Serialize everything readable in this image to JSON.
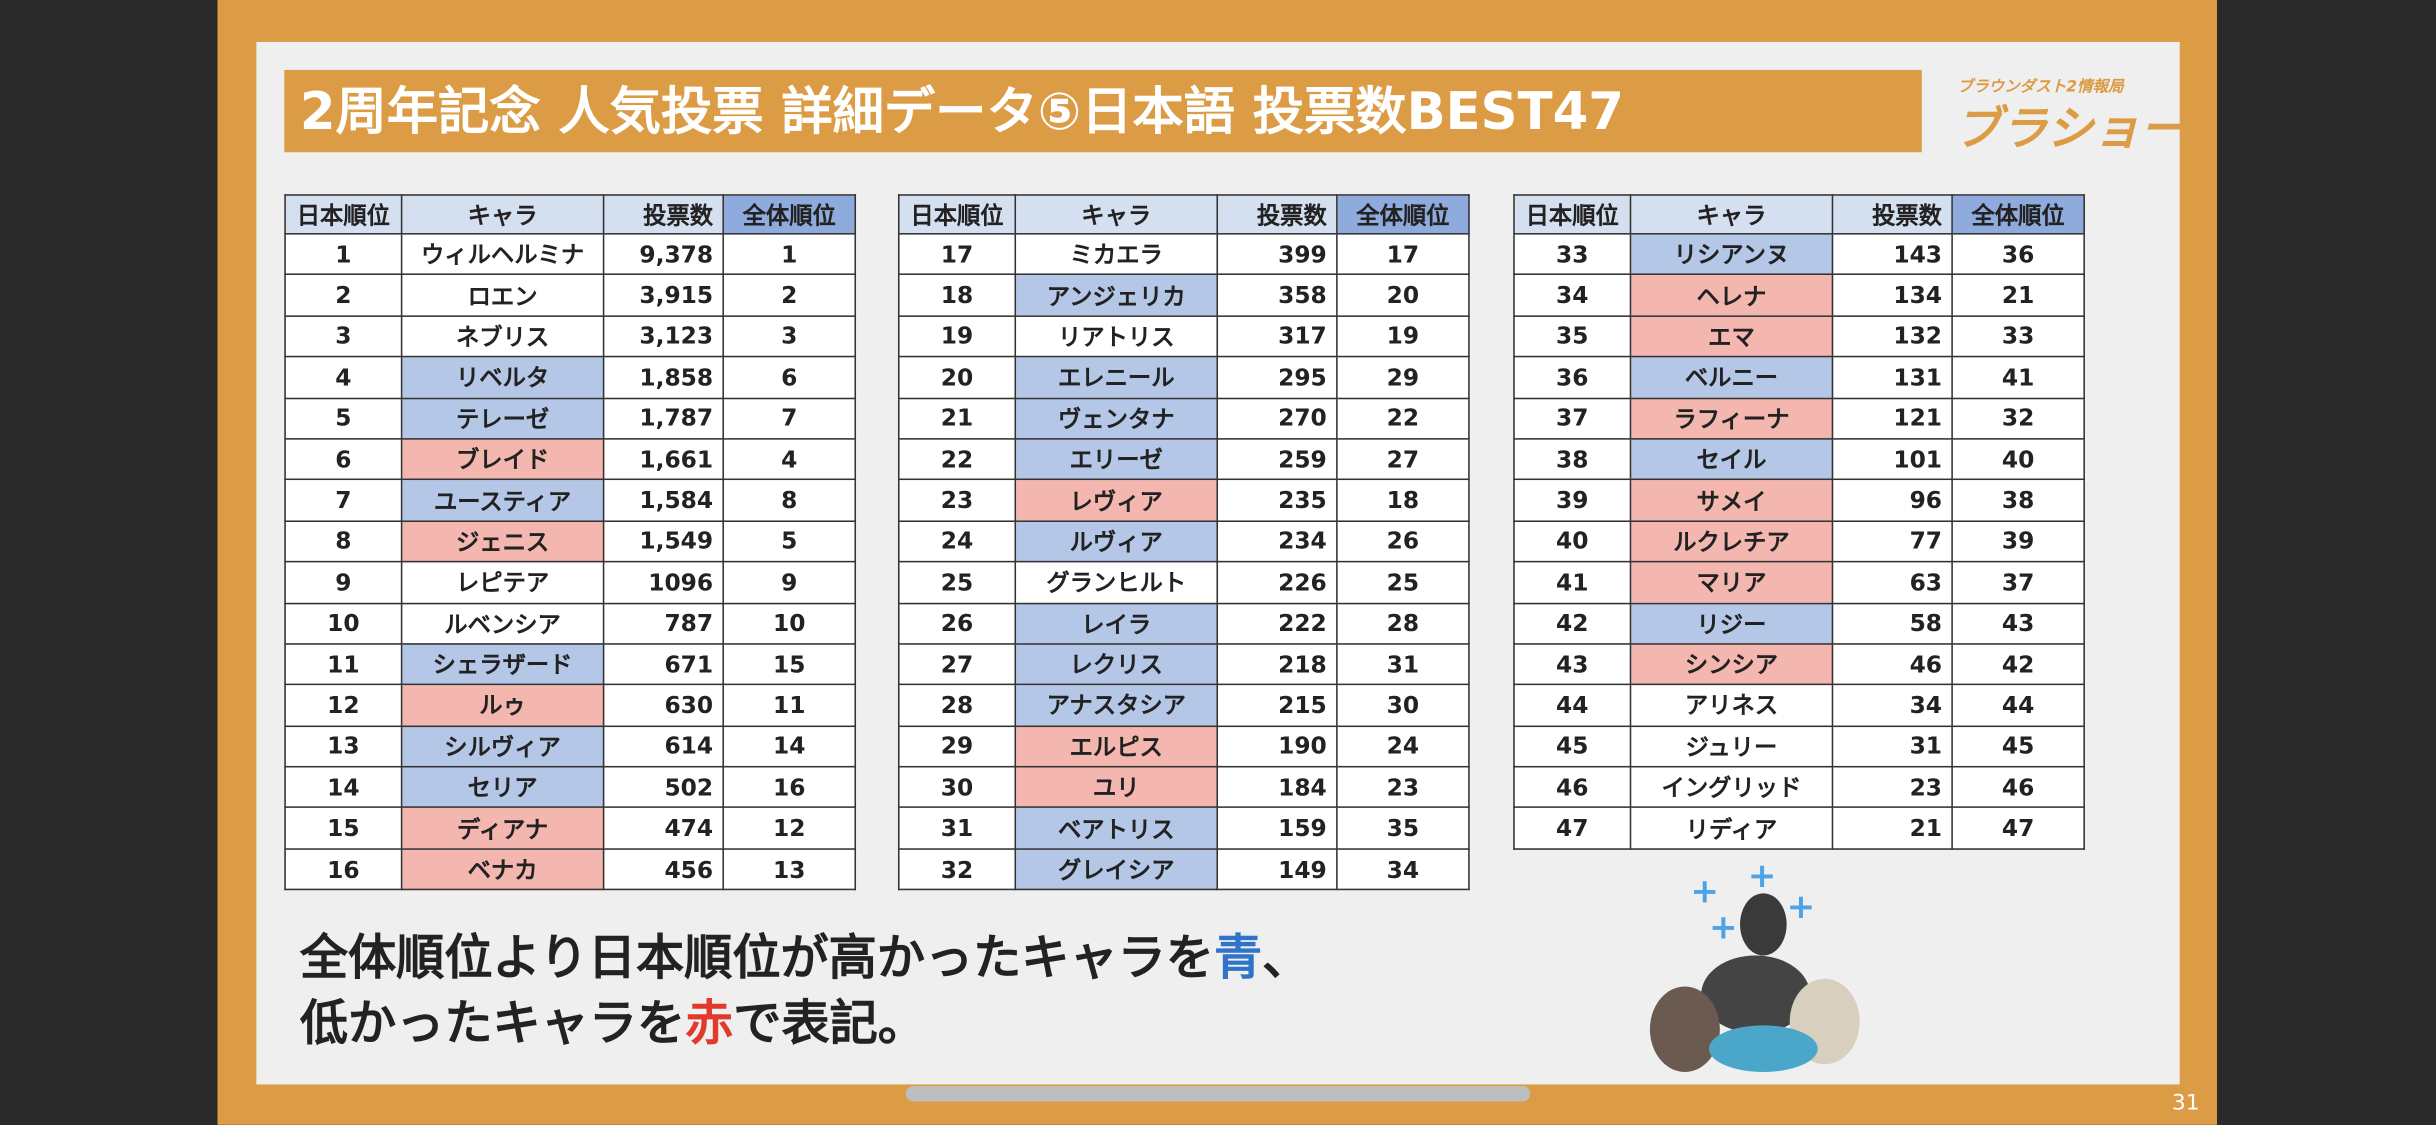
{
  "header": {
    "title": "2周年記念 人気投票 詳細データ⑤日本語 投票数BEST47",
    "logo_small": "ブラウンダスト2情報局",
    "logo": "ブラショー!"
  },
  "columns": [
    "日本順位",
    "キャラ",
    "投票数",
    "全体順位"
  ],
  "tables": [
    {
      "rows": [
        [
          1,
          "ウィルヘルミナ",
          "9,378",
          1
        ],
        [
          2,
          "ロエン",
          "3,915",
          2
        ],
        [
          3,
          "ネブリス",
          "3,123",
          3
        ],
        [
          4,
          "リベルタ",
          "1,858",
          6
        ],
        [
          5,
          "テレーゼ",
          "1,787",
          7
        ],
        [
          6,
          "ブレイド",
          "1,661",
          4
        ],
        [
          7,
          "ユースティア",
          "1,584",
          8
        ],
        [
          8,
          "ジェニス",
          "1,549",
          5
        ],
        [
          9,
          "レピテア",
          1096,
          9
        ],
        [
          10,
          "ルベンシア",
          787,
          10
        ],
        [
          11,
          "シェラザード",
          671,
          15
        ],
        [
          12,
          "ルゥ",
          630,
          11
        ],
        [
          13,
          "シルヴィア",
          614,
          14
        ],
        [
          14,
          "セリア",
          502,
          16
        ],
        [
          15,
          "ディアナ",
          474,
          12
        ],
        [
          16,
          "ベナカ",
          456,
          13
        ]
      ],
      "colors": [
        "#ffffff",
        "#ffffff",
        "#ffffff",
        "#b4c7e7",
        "#b4c7e7",
        "#f4b7b0",
        "#b4c7e7",
        "#f4b7b0",
        "#ffffff",
        "#ffffff",
        "#b4c7e7",
        "#f4b7b0",
        "#b4c7e7",
        "#b4c7e7",
        "#f4b7b0",
        "#f4b7b0"
      ]
    },
    {
      "rows": [
        [
          17,
          "ミカエラ",
          399,
          17
        ],
        [
          18,
          "アンジェリカ",
          358,
          20
        ],
        [
          19,
          "リアトリス",
          317,
          19
        ],
        [
          20,
          "エレニール",
          295,
          29
        ],
        [
          21,
          "ヴェンタナ",
          270,
          22
        ],
        [
          22,
          "エリーゼ",
          259,
          27
        ],
        [
          23,
          "レヴィア",
          235,
          18
        ],
        [
          24,
          "ルヴィア",
          234,
          26
        ],
        [
          25,
          "グランヒルト",
          226,
          25
        ],
        [
          26,
          "レイラ",
          222,
          28
        ],
        [
          27,
          "レクリス",
          218,
          31
        ],
        [
          28,
          "アナスタシア",
          215,
          30
        ],
        [
          29,
          "エルピス",
          190,
          24
        ],
        [
          30,
          "ユリ",
          184,
          23
        ],
        [
          31,
          "ベアトリス",
          159,
          35
        ],
        [
          32,
          "グレイシア",
          149,
          34
        ]
      ],
      "colors": [
        "#ffffff",
        "#b4c7e7",
        "#ffffff",
        "#b4c7e7",
        "#b4c7e7",
        "#b4c7e7",
        "#f4b7b0",
        "#b4c7e7",
        "#ffffff",
        "#b4c7e7",
        "#b4c7e7",
        "#b4c7e7",
        "#f4b7b0",
        "#f4b7b0",
        "#b4c7e7",
        "#b4c7e7"
      ]
    },
    {
      "rows": [
        [
          33,
          "リシアンヌ",
          143,
          36
        ],
        [
          34,
          "ヘレナ",
          134,
          21
        ],
        [
          35,
          "エマ",
          132,
          33
        ],
        [
          36,
          "ベルニー",
          131,
          41
        ],
        [
          37,
          "ラフィーナ",
          121,
          32
        ],
        [
          38,
          "セイル",
          101,
          40
        ],
        [
          39,
          "サメイ",
          96,
          38
        ],
        [
          40,
          "ルクレチア",
          77,
          39
        ],
        [
          41,
          "マリア",
          63,
          37
        ],
        [
          42,
          "リジー",
          58,
          43
        ],
        [
          43,
          "シンシア",
          46,
          42
        ],
        [
          44,
          "アリネス",
          34,
          44
        ],
        [
          45,
          "ジュリー",
          31,
          45
        ],
        [
          46,
          "イングリッド",
          23,
          46
        ],
        [
          47,
          "リディア",
          21,
          47
        ]
      ],
      "colors": [
        "#b4c7e7",
        "#f4b7b0",
        "#f4b7b0",
        "#b4c7e7",
        "#f4b7b0",
        "#b4c7e7",
        "#f4b7b0",
        "#f4b7b0",
        "#f4b7b0",
        "#b4c7e7",
        "#f4b7b0",
        "#ffffff",
        "#ffffff",
        "#ffffff",
        "#ffffff"
      ]
    }
  ],
  "caption": {
    "line1": [
      "全体順位より日本順位が高かったキャラを",
      "青",
      "、"
    ],
    "line2": [
      "低かったキャラを",
      "赤",
      "で表記。"
    ]
  },
  "page_number": "31"
}
